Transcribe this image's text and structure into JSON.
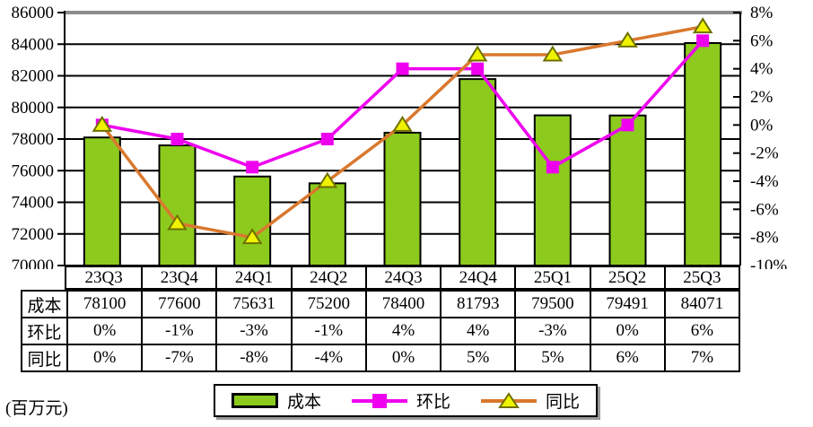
{
  "unit_label": "(百万元)",
  "chart_data": {
    "type": "combo",
    "title": "",
    "categories": [
      "23Q3",
      "23Q4",
      "24Q1",
      "24Q2",
      "24Q3",
      "24Q4",
      "25Q1",
      "25Q2",
      "25Q3"
    ],
    "series": [
      {
        "name": "成本",
        "type": "bar",
        "axis": "left",
        "values": [
          78100,
          77600,
          75631,
          75200,
          78400,
          81793,
          79500,
          79491,
          84071
        ]
      },
      {
        "name": "环比",
        "type": "line",
        "axis": "right",
        "marker": "square",
        "values": [
          0,
          -1,
          -3,
          -1,
          4,
          4,
          -3,
          0,
          6
        ]
      },
      {
        "name": "同比",
        "type": "line",
        "axis": "right",
        "marker": "triangle",
        "values": [
          0,
          -7,
          -8,
          -4,
          0,
          5,
          5,
          6,
          7
        ]
      }
    ],
    "left_axis": {
      "min": 70000,
      "max": 86000,
      "step": 2000,
      "tick_labels": [
        "86000",
        "84000",
        "82000",
        "80000",
        "78000",
        "76000",
        "74000",
        "72000",
        "70000"
      ]
    },
    "right_axis": {
      "min": -10,
      "max": 8,
      "step": 2,
      "tick_labels": [
        "8%",
        "6%",
        "4%",
        "2%",
        "0%",
        "-2%",
        "-4%",
        "-6%",
        "-8%",
        "-10%"
      ]
    },
    "grid": "horizontal-black",
    "legend_position": "bottom",
    "colors": {
      "bar_fill": "#8CCB1E",
      "bar_border": "#000000",
      "huanbi_line": "#EE00EE",
      "tongbi_line": "#D9782E",
      "tongbi_marker_fill": "#EFF200",
      "tongbi_marker_stroke": "#6E7000",
      "plot_top_border": "#8C8C8C",
      "gridline": "#000000"
    }
  },
  "table": {
    "row_labels": [
      "成本",
      "环比",
      "同比"
    ],
    "rows": [
      [
        "78100",
        "77600",
        "75631",
        "75200",
        "78400",
        "81793",
        "79500",
        "79491",
        "84071"
      ],
      [
        "0%",
        "-1%",
        "-3%",
        "-1%",
        "4%",
        "4%",
        "-3%",
        "0%",
        "6%"
      ],
      [
        "0%",
        "-7%",
        "-8%",
        "-4%",
        "0%",
        "5%",
        "5%",
        "6%",
        "7%"
      ]
    ]
  },
  "legend": {
    "items": [
      {
        "label": "成本",
        "swatch": "bar"
      },
      {
        "label": "环比",
        "swatch": "line-square"
      },
      {
        "label": "同比",
        "swatch": "line-triangle"
      }
    ]
  }
}
